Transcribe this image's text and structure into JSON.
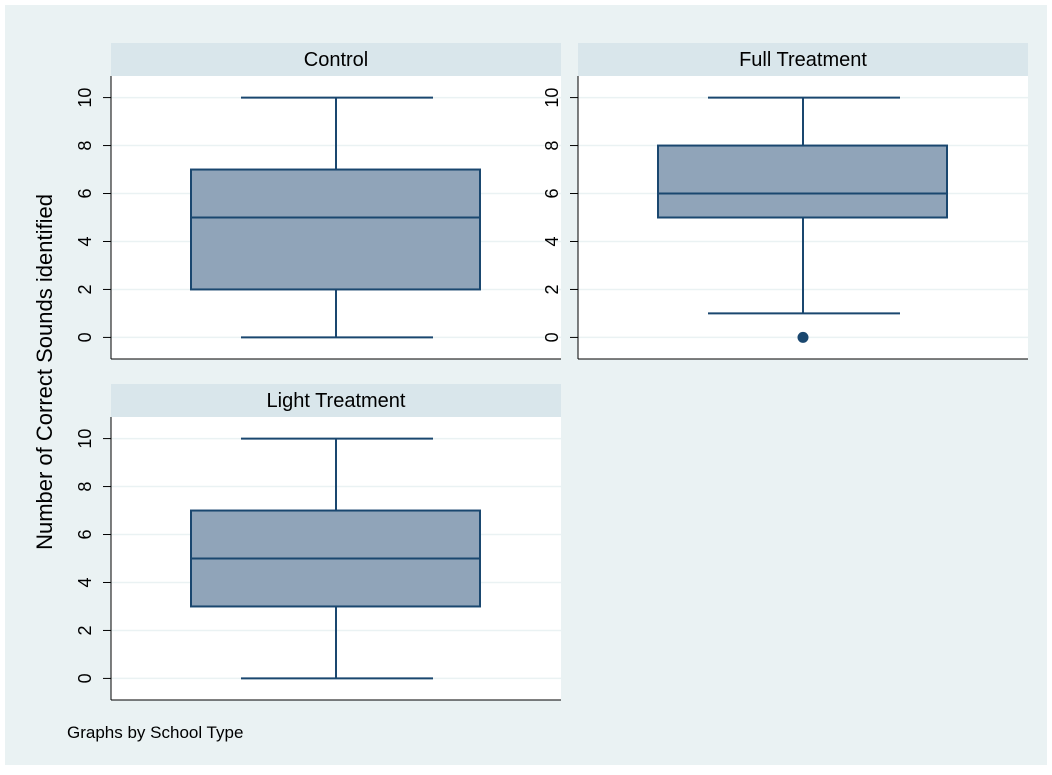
{
  "chart_data": {
    "type": "box",
    "ylabel": "Number of Correct Sounds identified",
    "note": "Graphs by School Type",
    "ylim": [
      -0.9,
      10.9
    ],
    "yticks": [
      0,
      2,
      4,
      6,
      8,
      10
    ],
    "grid": true,
    "colors": {
      "outer_bg": "#eaf2f3",
      "plot_bg": "#ffffff",
      "strip_bg": "#d9e6eb",
      "box_fill": "#90a4b9",
      "line": "#1a476f"
    },
    "panels": [
      {
        "title": "Control",
        "whisker_low": 0,
        "q1": 2,
        "median": 5,
        "q3": 7,
        "whisker_high": 10,
        "outliers": []
      },
      {
        "title": "Full Treatment",
        "whisker_low": 1,
        "q1": 5,
        "median": 6,
        "q3": 8,
        "whisker_high": 10,
        "outliers": [
          0
        ]
      },
      {
        "title": "Light Treatment",
        "whisker_low": 0,
        "q1": 3,
        "median": 5,
        "q3": 7,
        "whisker_high": 10,
        "outliers": []
      }
    ]
  }
}
